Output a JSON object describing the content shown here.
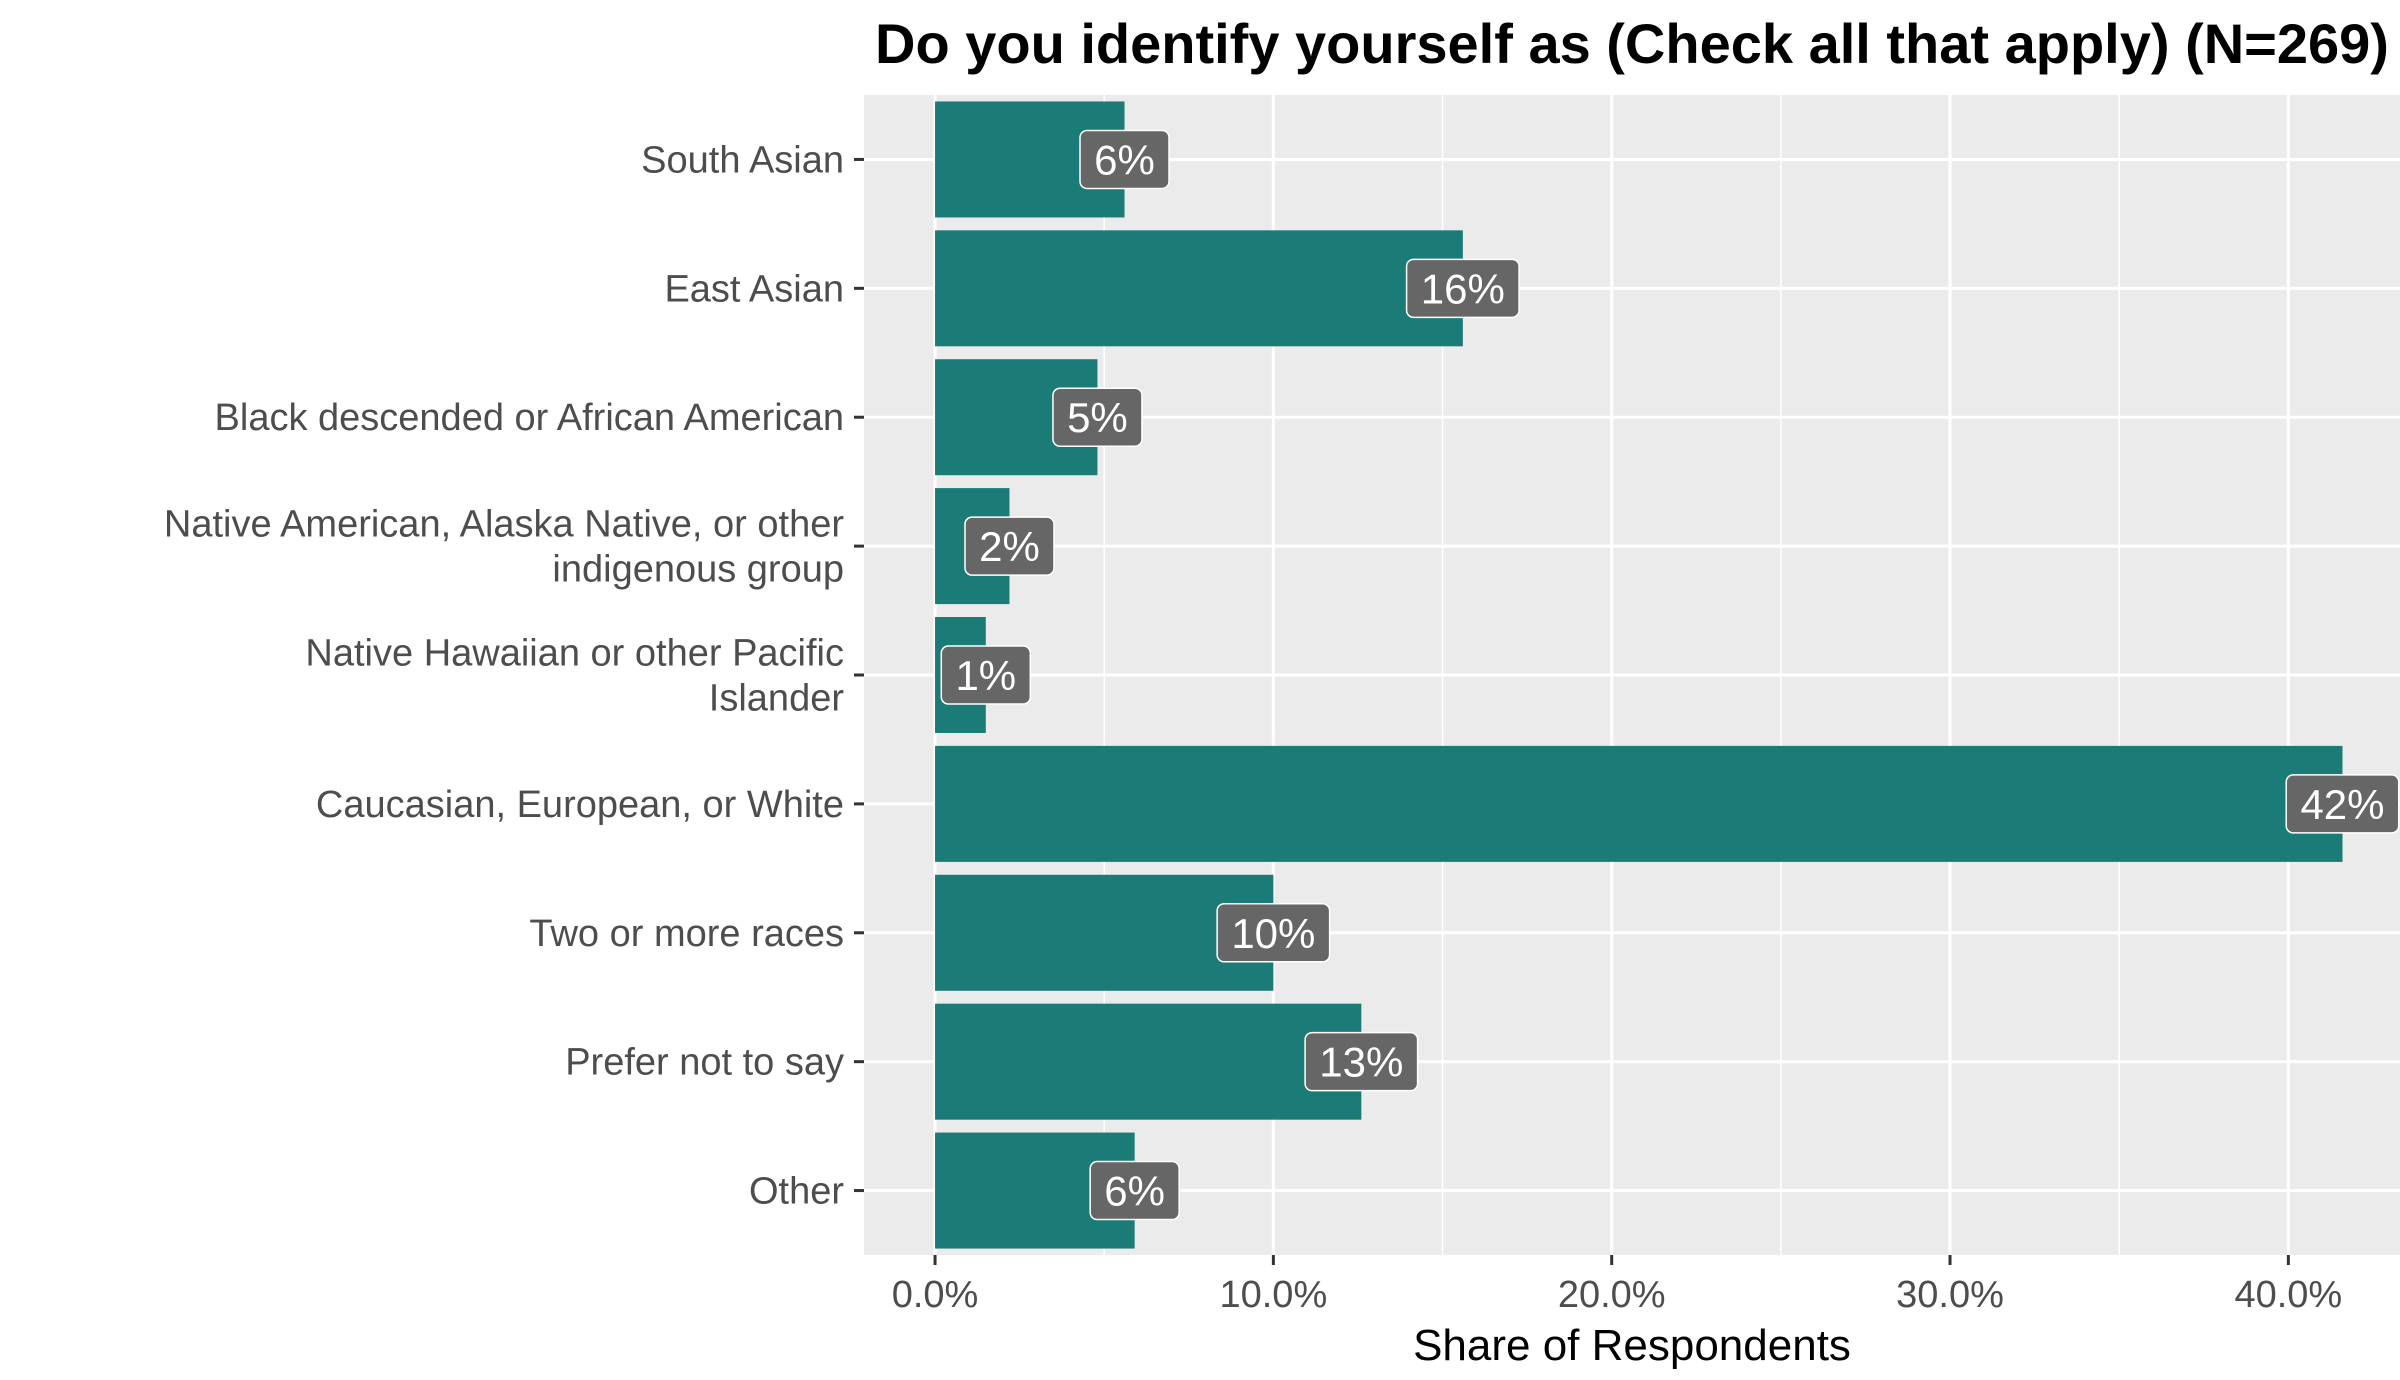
{
  "chart_data": {
    "type": "bar",
    "orientation": "horizontal",
    "title": "Do you identify yourself as (Check all that apply) (N=269)",
    "xlabel": "Share of Respondents",
    "ylabel": "",
    "categories": [
      [
        "South Asian"
      ],
      [
        "East Asian"
      ],
      [
        "Black descended or African American"
      ],
      [
        "Native American, Alaska Native, or other",
        "indigenous group"
      ],
      [
        "Native Hawaiian or other Pacific",
        "Islander"
      ],
      [
        "Caucasian, European, or White"
      ],
      [
        "Two or more races"
      ],
      [
        "Prefer not to say"
      ],
      [
        "Other"
      ]
    ],
    "values": [
      5.6,
      15.6,
      4.8,
      2.2,
      1.5,
      41.6,
      10.0,
      12.6,
      5.9
    ],
    "data_labels": [
      "6%",
      "16%",
      "5%",
      "2%",
      "1%",
      "42%",
      "10%",
      "13%",
      "6%"
    ],
    "xlim": [
      -2.1,
      43.3
    ],
    "x_ticks": [
      0,
      10,
      20,
      30,
      40
    ],
    "x_tick_labels": [
      "0.0%",
      "10.0%",
      "20.0%",
      "30.0%",
      "40.0%"
    ],
    "grid": true,
    "legend": "none",
    "colors": {
      "bar": "#1b7b76",
      "panel_background": "#ebebeb",
      "grid": "#ffffff",
      "label_box": "#666666",
      "label_text": "#ffffff",
      "tick_text": "#4d4d4d",
      "title_text": "#000000"
    }
  }
}
